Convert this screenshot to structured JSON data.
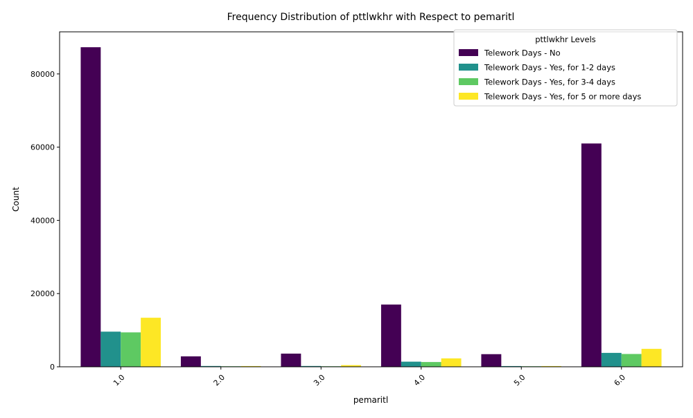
{
  "chart_data": {
    "type": "bar",
    "title": "Frequency Distribution of pttlwkhr with Respect to pemaritl",
    "xlabel": "pemaritl",
    "ylabel": "Count",
    "categories": [
      "1.0",
      "2.0",
      "3.0",
      "4.0",
      "5.0",
      "6.0"
    ],
    "ylim": [
      0,
      91500
    ],
    "yticks": [
      0,
      20000,
      40000,
      60000,
      80000
    ],
    "grid": false,
    "legend": {
      "title": "pttlwkhr Levels",
      "placement": "top-right"
    },
    "series": [
      {
        "name": "Telework Days - No",
        "color": "#440154",
        "values": [
          87300,
          2850,
          3600,
          17000,
          3450,
          61000
        ]
      },
      {
        "name": "Telework Days - Yes, for 1-2 days",
        "color": "#21918c",
        "values": [
          9600,
          220,
          220,
          1400,
          200,
          3800
        ]
      },
      {
        "name": "Telework Days - Yes, for 3-4 days",
        "color": "#5ec962",
        "values": [
          9400,
          150,
          150,
          1300,
          150,
          3500
        ]
      },
      {
        "name": "Telework Days - Yes, for 5 or more days",
        "color": "#fde725",
        "values": [
          13400,
          200,
          450,
          2300,
          200,
          4900
        ]
      }
    ]
  }
}
